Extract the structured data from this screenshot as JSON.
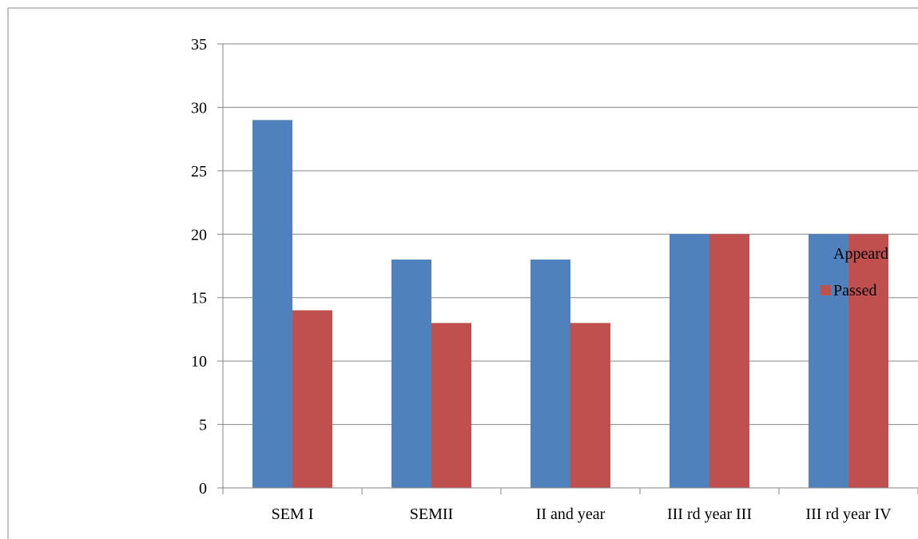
{
  "chart_data": {
    "type": "bar",
    "categories": [
      "SEM I",
      "SEMII",
      "II and year",
      "III rd year III",
      "III rd year IV"
    ],
    "series": [
      {
        "name": "Appeard",
        "values": [
          29,
          18,
          18,
          20,
          20
        ],
        "color": "#4F81BD"
      },
      {
        "name": "Passed",
        "values": [
          14,
          13,
          13,
          20,
          20
        ],
        "color": "#C0504D"
      }
    ],
    "title": "",
    "xlabel": "",
    "ylabel": "",
    "ylim": [
      0,
      35
    ],
    "yticks": [
      "0",
      "5",
      "10",
      "15",
      "20",
      "25",
      "30",
      "35"
    ],
    "grid": true,
    "legend_position": "right"
  }
}
